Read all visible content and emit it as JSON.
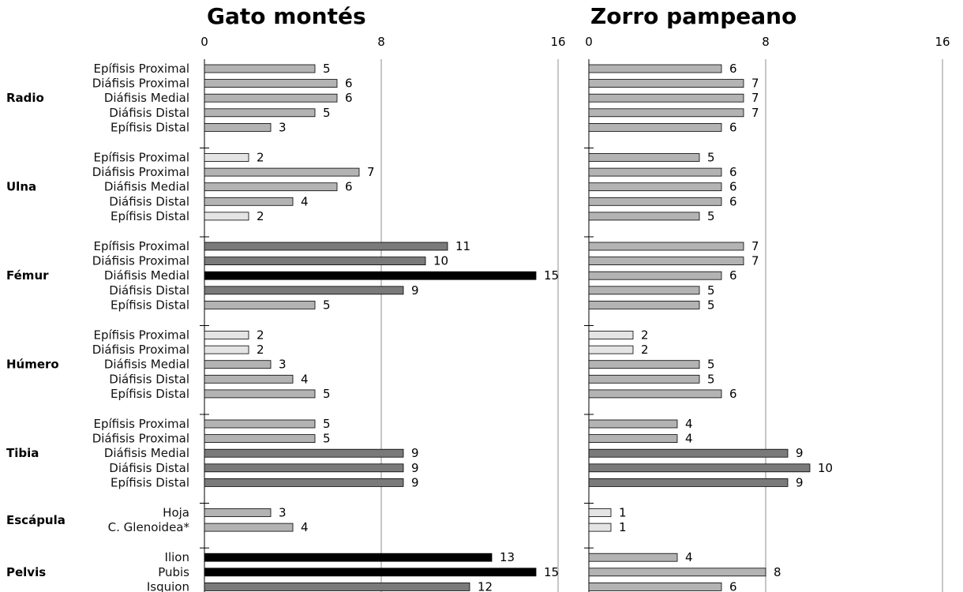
{
  "chart_data": {
    "type": "bar",
    "orientation": "horizontal",
    "xlim": [
      0,
      16
    ],
    "xticks": [
      0,
      8,
      16
    ],
    "grid": true,
    "groups": [
      {
        "name": "Radio",
        "items": [
          {
            "label": "Epífisis Proximal",
            "gato": 5,
            "zorro": 6
          },
          {
            "label": "Diáfisis Proximal",
            "gato": 6,
            "zorro": 7
          },
          {
            "label": "Diáfisis Medial",
            "gato": 6,
            "zorro": 7
          },
          {
            "label": "Diáfisis Distal",
            "gato": 5,
            "zorro": 7
          },
          {
            "label": "Epífisis Distal",
            "gato": 3,
            "zorro": 6
          }
        ]
      },
      {
        "name": "Ulna",
        "items": [
          {
            "label": "Epífisis Proximal",
            "gato": 2,
            "zorro": 5
          },
          {
            "label": "Diáfisis Proximal",
            "gato": 7,
            "zorro": 6
          },
          {
            "label": "Diáfisis Medial",
            "gato": 6,
            "zorro": 6
          },
          {
            "label": "Diáfisis Distal",
            "gato": 4,
            "zorro": 6
          },
          {
            "label": "Epífisis Distal",
            "gato": 2,
            "zorro": 5
          }
        ]
      },
      {
        "name": "Fémur",
        "items": [
          {
            "label": "Epífisis Proximal",
            "gato": 11,
            "zorro": 7
          },
          {
            "label": "Diáfisis Proximal",
            "gato": 10,
            "zorro": 7
          },
          {
            "label": "Diáfisis Medial",
            "gato": 15,
            "zorro": 6
          },
          {
            "label": "Diáfisis Distal",
            "gato": 9,
            "zorro": 5
          },
          {
            "label": "Epífisis Distal",
            "gato": 5,
            "zorro": 5
          }
        ]
      },
      {
        "name": "Húmero",
        "items": [
          {
            "label": "Epífisis Proximal",
            "gato": 2,
            "zorro": 2
          },
          {
            "label": "Diáfisis Proximal",
            "gato": 2,
            "zorro": 2
          },
          {
            "label": "Diáfisis Medial",
            "gato": 3,
            "zorro": 5
          },
          {
            "label": "Diáfisis Distal",
            "gato": 4,
            "zorro": 5
          },
          {
            "label": "Epífisis Distal",
            "gato": 5,
            "zorro": 6
          }
        ]
      },
      {
        "name": "Tibia",
        "items": [
          {
            "label": "Epífisis Proximal",
            "gato": 5,
            "zorro": 4
          },
          {
            "label": "Diáfisis Proximal",
            "gato": 5,
            "zorro": 4
          },
          {
            "label": "Diáfisis Medial",
            "gato": 9,
            "zorro": 9
          },
          {
            "label": "Diáfisis Distal",
            "gato": 9,
            "zorro": 10
          },
          {
            "label": "Epífisis Distal",
            "gato": 9,
            "zorro": 9
          }
        ]
      },
      {
        "name": "Escápula",
        "items": [
          {
            "label": "Hoja",
            "gato": 3,
            "zorro": 1
          },
          {
            "label": "C. Glenoidea*",
            "gato": 4,
            "zorro": 1
          }
        ]
      },
      {
        "name": "Pelvis",
        "items": [
          {
            "label": "Ilion",
            "gato": 13,
            "zorro": 4
          },
          {
            "label": "Pubis",
            "gato": 15,
            "zorro": 8
          },
          {
            "label": "Isquion",
            "gato": 12,
            "zorro": 6
          }
        ]
      }
    ],
    "series": [
      {
        "key": "gato",
        "name": "Gato montés"
      },
      {
        "key": "zorro",
        "name": "Zorro pampeano"
      }
    ],
    "shading": {
      "low": "#e4e4e4",
      "mid": "#b3b3b3",
      "high": "#7a7a7a",
      "max": "#000000"
    }
  }
}
